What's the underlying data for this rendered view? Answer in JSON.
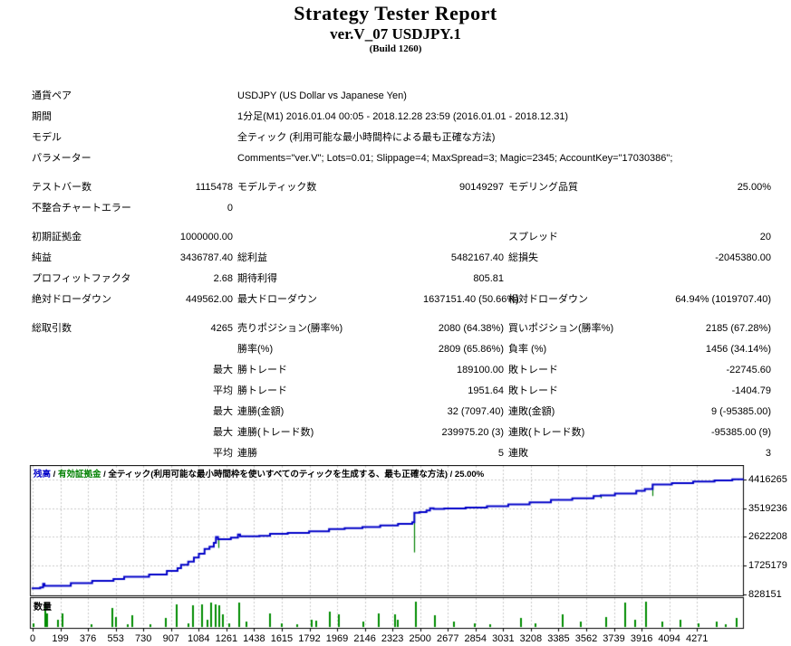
{
  "header": {
    "title": "Strategy Tester Report",
    "subtitle": "ver.V_07 USDJPY.1",
    "build": "(Build 1260)"
  },
  "report": {
    "info_rows": [
      {
        "label": "通貨ペア",
        "value": "USDJPY (US Dollar vs Japanese Yen)"
      },
      {
        "label": "期間",
        "value": "1分足(M1) 2016.01.04 00:05 - 2018.12.28 23:59 (2016.01.01 - 2018.12.31)"
      },
      {
        "label": "モデル",
        "value": "全ティック (利用可能な最小時間枠による最も正確な方法)"
      },
      {
        "label": "パラメーター",
        "value": "Comments=\"ver.V\"; Lots=0.01; Slippage=4; MaxSpread=3; Magic=2345; AccountKey=\"17030386\";"
      }
    ],
    "stat_sections": [
      {
        "rows": [
          [
            "テストバー数",
            "1115478",
            "モデルティック数",
            "90149297",
            "モデリング品質",
            "25.00%"
          ],
          [
            "不整合チャートエラー",
            "0",
            "",
            "",
            "",
            ""
          ]
        ]
      },
      {
        "rows": [
          [
            "初期証拠金",
            "1000000.00",
            "",
            "",
            "スプレッド",
            "20"
          ],
          [
            "純益",
            "3436787.40",
            "総利益",
            "5482167.40",
            "総損失",
            "-2045380.00"
          ],
          [
            "プロフィットファクタ",
            "2.68",
            "期待利得",
            "805.81",
            "",
            ""
          ],
          [
            "絶対ドローダウン",
            "449562.00",
            "最大ドローダウン",
            "1637151.40 (50.66%)",
            "相対ドローダウン",
            "64.94% (1019707.40)"
          ]
        ]
      },
      {
        "rows": [
          [
            "総取引数",
            "4265",
            "売りポジション(勝率%)",
            "2080 (64.38%)",
            "買いポジション(勝率%)",
            "2185 (67.28%)"
          ],
          [
            "",
            "",
            "勝率(%)",
            "2809 (65.86%)",
            "負率 (%)",
            "1456 (34.14%)"
          ],
          [
            "",
            "最大",
            "勝トレード",
            "189100.00",
            "敗トレード",
            "-22745.60"
          ],
          [
            "",
            "平均",
            "勝トレード",
            "1951.64",
            "敗トレード",
            "-1404.79"
          ],
          [
            "",
            "最大",
            "連勝(金額)",
            "32 (7097.40)",
            "連敗(金額)",
            "9 (-95385.00)"
          ],
          [
            "",
            "最大",
            "連勝(トレード数)",
            "239975.20 (3)",
            "連敗(トレード数)",
            "-95385.00 (9)"
          ],
          [
            "",
            "平均",
            "連勝",
            "5",
            "連敗",
            "3"
          ]
        ]
      }
    ]
  },
  "chart_data": {
    "type": "line",
    "legend": {
      "balance": "残高",
      "equity": "有効証拠金",
      "sep": " / ",
      "model": "全ティック(利用可能な最小時間枠を使いすべてのティックを生成する、最も正確な方法) / 25.00%"
    },
    "ylim": [
      800000,
      4880000
    ],
    "y_ticks": [
      828151,
      1725179,
      2622208,
      3519236,
      4416265
    ],
    "x_ticks": [
      0,
      199,
      376,
      553,
      730,
      907,
      1084,
      1261,
      1438,
      1615,
      1792,
      1969,
      2146,
      2323,
      2500,
      2677,
      2854,
      3031,
      3208,
      3385,
      3562,
      3739,
      3916,
      4094,
      4271
    ],
    "x_unit": "trade number (curve x stored as fraction of plot width)",
    "grid": "dashed",
    "balance_curve": [
      [
        0.0,
        1020000
      ],
      [
        0.012,
        1050000
      ],
      [
        0.016,
        1160000
      ],
      [
        0.018,
        1100000
      ],
      [
        0.055,
        1180000
      ],
      [
        0.085,
        1250000
      ],
      [
        0.115,
        1310000
      ],
      [
        0.13,
        1380000
      ],
      [
        0.165,
        1450000
      ],
      [
        0.19,
        1560000
      ],
      [
        0.205,
        1650000
      ],
      [
        0.21,
        1750000
      ],
      [
        0.22,
        1850000
      ],
      [
        0.228,
        1980000
      ],
      [
        0.235,
        2100000
      ],
      [
        0.243,
        2250000
      ],
      [
        0.25,
        2320000
      ],
      [
        0.256,
        2440000
      ],
      [
        0.259,
        2620000
      ],
      [
        0.262,
        2550000
      ],
      [
        0.28,
        2600000
      ],
      [
        0.29,
        2700000
      ],
      [
        0.293,
        2640000
      ],
      [
        0.32,
        2660000
      ],
      [
        0.335,
        2720000
      ],
      [
        0.36,
        2750000
      ],
      [
        0.39,
        2800000
      ],
      [
        0.418,
        2870000
      ],
      [
        0.44,
        2900000
      ],
      [
        0.465,
        2930000
      ],
      [
        0.49,
        2980000
      ],
      [
        0.515,
        3030000
      ],
      [
        0.535,
        3080000
      ],
      [
        0.538,
        3380000
      ],
      [
        0.545,
        3400000
      ],
      [
        0.555,
        3450000
      ],
      [
        0.56,
        3520000
      ],
      [
        0.565,
        3500000
      ],
      [
        0.58,
        3510000
      ],
      [
        0.61,
        3540000
      ],
      [
        0.64,
        3580000
      ],
      [
        0.67,
        3640000
      ],
      [
        0.7,
        3700000
      ],
      [
        0.73,
        3780000
      ],
      [
        0.76,
        3830000
      ],
      [
        0.79,
        3900000
      ],
      [
        0.8,
        3920000
      ],
      [
        0.82,
        3980000
      ],
      [
        0.85,
        4060000
      ],
      [
        0.862,
        4120000
      ],
      [
        0.873,
        4260000
      ],
      [
        0.9,
        4300000
      ],
      [
        0.93,
        4350000
      ],
      [
        0.96,
        4390000
      ],
      [
        0.985,
        4420000
      ],
      [
        1.0,
        4436787
      ]
    ],
    "drawdown_spikes": [
      [
        0.262,
        2550000,
        2280000
      ],
      [
        0.418,
        2870000,
        2780000
      ],
      [
        0.538,
        3380000,
        2140000
      ],
      [
        0.8,
        3920000,
        3830000
      ],
      [
        0.873,
        4260000,
        3900000
      ]
    ],
    "volume": {
      "label": "数量",
      "bars": [
        [
          0.001,
          0.15
        ],
        [
          0.018,
          0.95
        ],
        [
          0.021,
          0.55
        ],
        [
          0.036,
          0.3
        ],
        [
          0.042,
          0.55
        ],
        [
          0.083,
          0.1
        ],
        [
          0.112,
          0.75
        ],
        [
          0.117,
          0.4
        ],
        [
          0.134,
          0.12
        ],
        [
          0.14,
          0.45
        ],
        [
          0.166,
          0.1
        ],
        [
          0.187,
          0.35
        ],
        [
          0.203,
          0.9
        ],
        [
          0.219,
          0.15
        ],
        [
          0.225,
          0.85
        ],
        [
          0.238,
          0.9
        ],
        [
          0.246,
          0.3
        ],
        [
          0.251,
          0.95
        ],
        [
          0.257,
          0.9
        ],
        [
          0.262,
          0.85
        ],
        [
          0.267,
          0.5
        ],
        [
          0.276,
          0.15
        ],
        [
          0.29,
          0.95
        ],
        [
          0.3,
          0.2
        ],
        [
          0.334,
          0.55
        ],
        [
          0.35,
          0.15
        ],
        [
          0.372,
          0.12
        ],
        [
          0.392,
          0.3
        ],
        [
          0.399,
          0.25
        ],
        [
          0.418,
          0.6
        ],
        [
          0.43,
          0.5
        ],
        [
          0.465,
          0.2
        ],
        [
          0.487,
          0.55
        ],
        [
          0.51,
          0.5
        ],
        [
          0.513,
          0.3
        ],
        [
          0.539,
          1.0
        ],
        [
          0.566,
          0.45
        ],
        [
          0.592,
          0.2
        ],
        [
          0.622,
          0.15
        ],
        [
          0.643,
          0.1
        ],
        [
          0.687,
          0.35
        ],
        [
          0.707,
          0.15
        ],
        [
          0.745,
          0.5
        ],
        [
          0.771,
          0.2
        ],
        [
          0.806,
          0.4
        ],
        [
          0.833,
          0.95
        ],
        [
          0.847,
          0.3
        ],
        [
          0.862,
          1.0
        ],
        [
          0.885,
          0.2
        ],
        [
          0.911,
          0.3
        ],
        [
          0.936,
          0.15
        ],
        [
          0.962,
          0.2
        ],
        [
          0.975,
          0.1
        ],
        [
          0.99,
          0.35
        ]
      ]
    },
    "colors": {
      "balance_line": "#0000C8",
      "equity_green": "#008000",
      "volume_bar": "#008C00",
      "grid": "#C9C9C9",
      "border": "#000000"
    }
  }
}
